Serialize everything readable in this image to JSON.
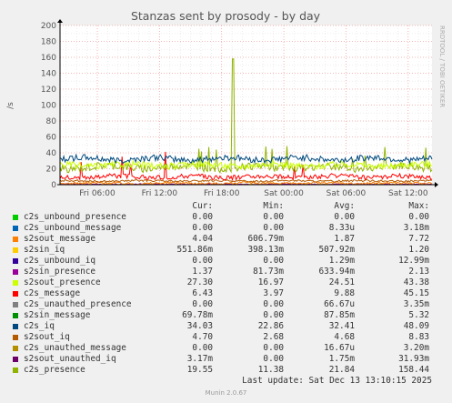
{
  "chart_data": {
    "type": "line",
    "title": "Stanzas sent by prosody - by day",
    "ylabel": "/s",
    "side_label": "RRDTOOL / TOBI OETIKER",
    "ylim": [
      0,
      200
    ],
    "y_ticks": [
      0,
      20,
      40,
      60,
      80,
      100,
      120,
      140,
      160,
      180,
      200
    ],
    "x_tick_labels": [
      "Fri 06:00",
      "Fri 12:00",
      "Fri 18:00",
      "Sat 00:00",
      "Sat 06:00",
      "Sat 12:00"
    ],
    "x_hours": [
      6,
      12,
      18,
      24,
      30,
      36
    ],
    "xlim_hours": [
      2.4,
      38.3
    ],
    "grid": true,
    "series": [
      {
        "name": "c2s_unbound_presence",
        "color": "#00cc00",
        "cur": "0.00",
        "min": "0.00",
        "avg": "0.00",
        "max": "0.00",
        "level": 0,
        "noise": 0
      },
      {
        "name": "c2s_unbound_message",
        "color": "#0066b3",
        "cur": "0.00",
        "min": "0.00",
        "avg": "8.33u",
        "max": "3.18m",
        "level": 0,
        "noise": 0
      },
      {
        "name": "s2sout_message",
        "color": "#ff8000",
        "cur": "4.04",
        "min": "606.79m",
        "avg": "1.87",
        "max": "7.72",
        "level": 1.9,
        "noise": 1.5
      },
      {
        "name": "s2sin_iq",
        "color": "#ffcc00",
        "cur": "551.86m",
        "min": "398.13m",
        "avg": "507.92m",
        "max": "1.20",
        "level": 0.5,
        "noise": 0.3
      },
      {
        "name": "c2s_unbound_iq",
        "color": "#330099",
        "cur": "0.00",
        "min": "0.00",
        "avg": "1.29m",
        "max": "12.99m",
        "level": 0,
        "noise": 0
      },
      {
        "name": "s2sin_presence",
        "color": "#990099",
        "cur": "1.37",
        "min": "81.73m",
        "avg": "633.94m",
        "max": "2.13",
        "level": 0.6,
        "noise": 0.5
      },
      {
        "name": "s2sout_presence",
        "color": "#ccff00",
        "cur": "27.30",
        "min": "16.97",
        "avg": "24.51",
        "max": "43.38",
        "level": 24.5,
        "noise": 4
      },
      {
        "name": "c2s_message",
        "color": "#ff0000",
        "cur": "6.43",
        "min": "3.97",
        "avg": "9.88",
        "max": "45.15",
        "level": 9.9,
        "noise": 3
      },
      {
        "name": "c2s_unauthed_presence",
        "color": "#808080",
        "cur": "0.00",
        "min": "0.00",
        "avg": "66.67u",
        "max": "3.35m",
        "level": 0,
        "noise": 0
      },
      {
        "name": "s2sin_message",
        "color": "#008f00",
        "cur": "69.78m",
        "min": "0.00",
        "avg": "87.85m",
        "max": "5.32",
        "level": 0.1,
        "noise": 0.1
      },
      {
        "name": "c2s_iq",
        "color": "#00487d",
        "cur": "34.03",
        "min": "22.86",
        "avg": "32.41",
        "max": "48.09",
        "level": 32.4,
        "noise": 4
      },
      {
        "name": "s2sout_iq",
        "color": "#b35a00",
        "cur": "4.70",
        "min": "2.68",
        "avg": "4.68",
        "max": "8.83",
        "level": 4.7,
        "noise": 1.2
      },
      {
        "name": "c2s_unauthed_message",
        "color": "#b38f00",
        "cur": "0.00",
        "min": "0.00",
        "avg": "16.67u",
        "max": "3.20m",
        "level": 0,
        "noise": 0
      },
      {
        "name": "s2sout_unauthed_iq",
        "color": "#6b006b",
        "cur": "3.17m",
        "min": "0.00",
        "avg": "1.75m",
        "max": "31.93m",
        "level": 0,
        "noise": 0
      },
      {
        "name": "c2s_presence",
        "color": "#8fb300",
        "cur": "19.55",
        "min": "11.38",
        "avg": "21.84",
        "max": "158.44",
        "level": 21.8,
        "noise": 5
      }
    ]
  },
  "legend_headers": {
    "cur": "Cur:",
    "min": "Min:",
    "avg": "Avg:",
    "max": "Max:"
  },
  "last_update": "Last update: Sat Dec 13 13:10:15 2025",
  "munin_version": "Munin 2.0.67"
}
